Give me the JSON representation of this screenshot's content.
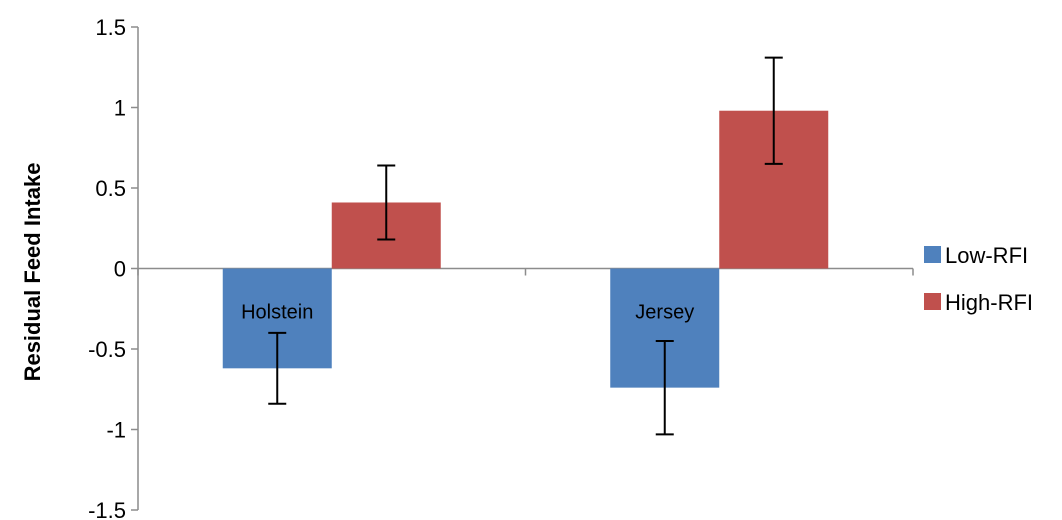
{
  "chart_data": {
    "type": "bar",
    "title": "",
    "xlabel": "",
    "ylabel": "Residual Feed Intake",
    "ylim": [
      -1.5,
      1.5
    ],
    "yticks": [
      1.5,
      1,
      0.5,
      0,
      -0.5,
      -1,
      -1.5
    ],
    "ytick_labels": [
      "1.5",
      "1",
      "0.5",
      "0",
      "-0.5",
      "-1",
      "-1.5"
    ],
    "categories": [
      "Holstein",
      "Jersey"
    ],
    "series": [
      {
        "name": "Low-RFI",
        "color": "#4F81BD",
        "values": [
          -0.62,
          -0.74
        ],
        "errors": [
          0.22,
          0.29
        ]
      },
      {
        "name": "High-RFI",
        "color": "#C0504D",
        "values": [
          0.41,
          0.98
        ],
        "errors": [
          0.23,
          0.33
        ]
      }
    ],
    "grid": false,
    "legend_position": "right"
  }
}
